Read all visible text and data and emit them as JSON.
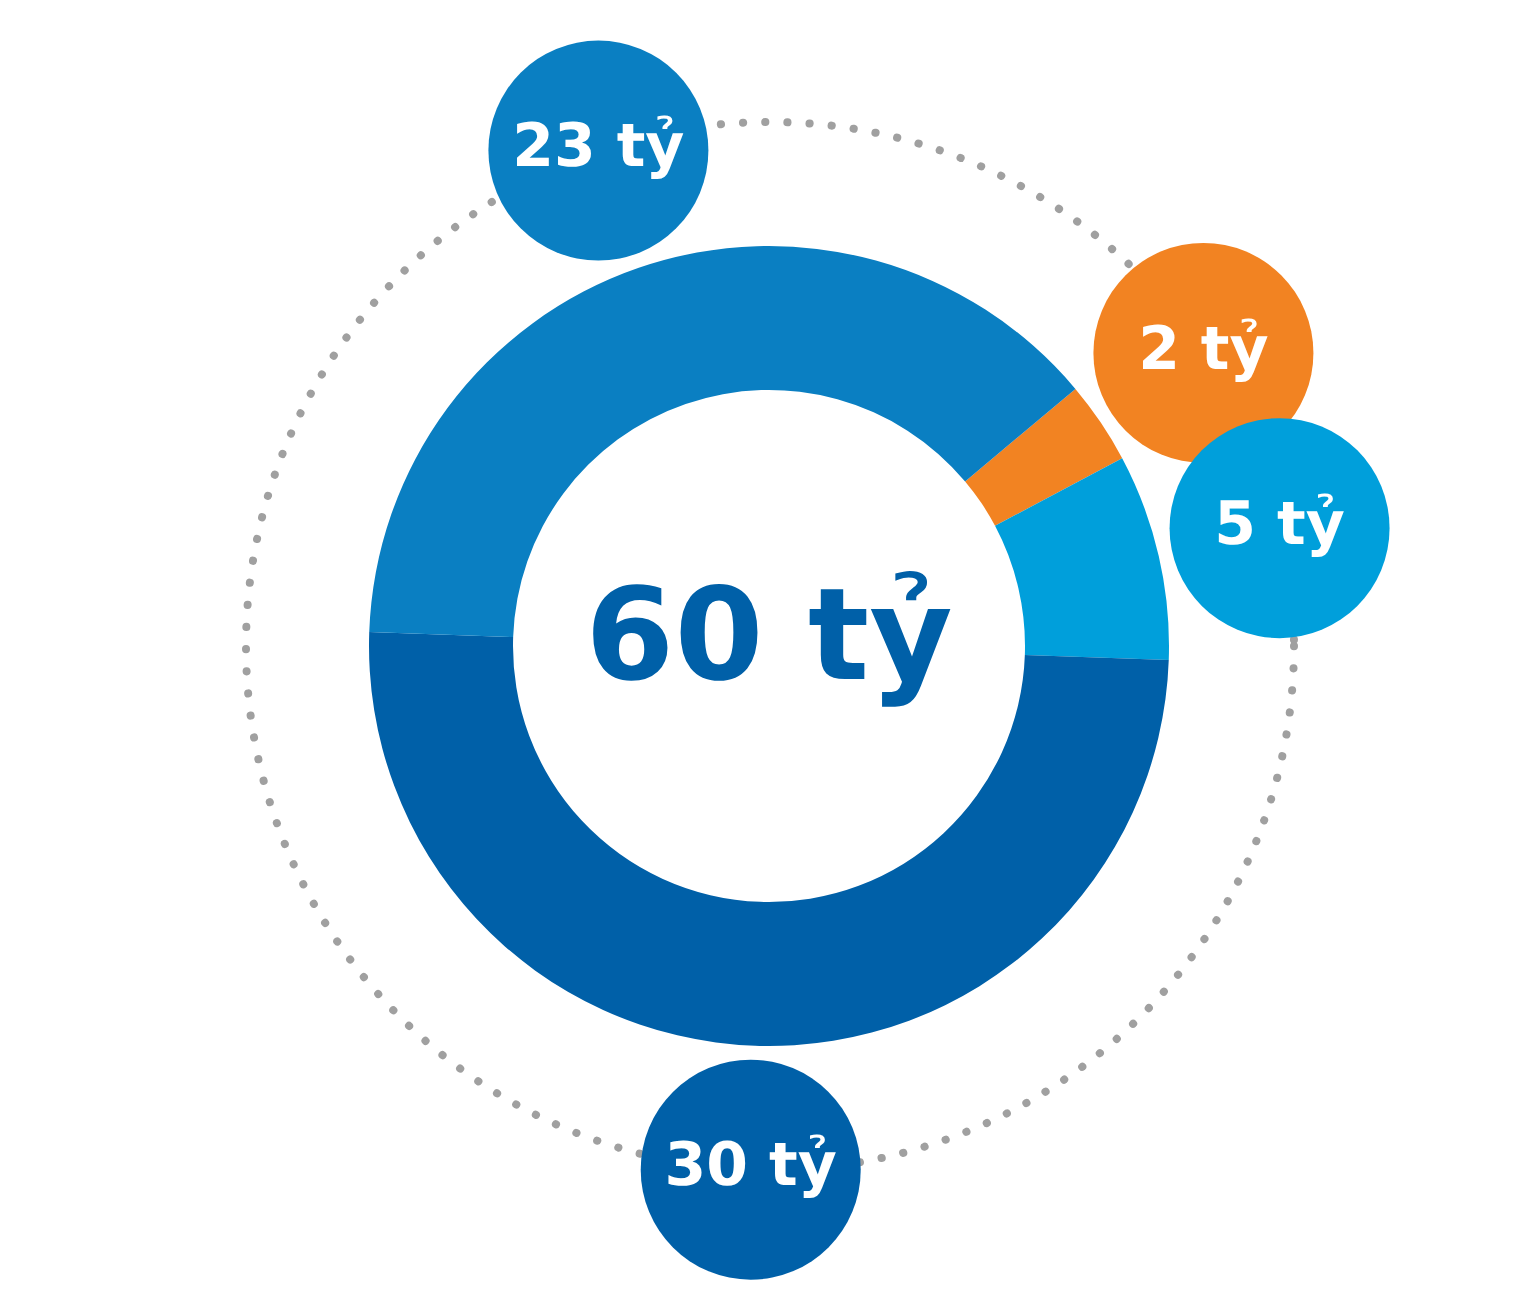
{
  "chart_data": {
    "type": "donut",
    "categories": [
      null,
      null,
      null,
      null
    ],
    "values": [
      2,
      5,
      30,
      23
    ],
    "colors": [
      "#f28322",
      "#009fdb",
      "#0060a8",
      "#0a7fc2"
    ],
    "value_labels": [
      "2 tỷ",
      "5 tỷ",
      "30 tỷ",
      "23 tỷ"
    ],
    "annotations": [
      "60 tỷ"
    ]
  }
}
